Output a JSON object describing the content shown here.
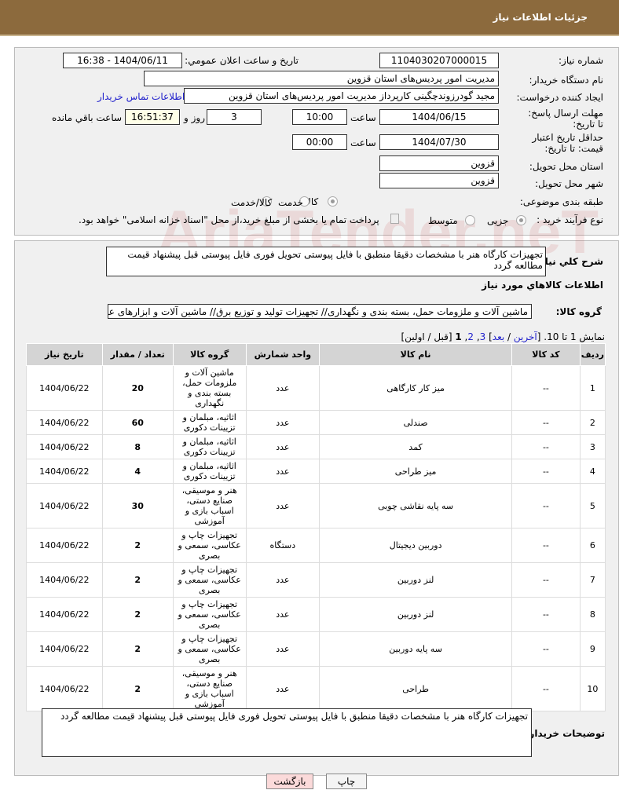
{
  "header": {
    "title": "جزئیات اطلاعات نیاز"
  },
  "form": {
    "need_number_label": "شماره نیاز:",
    "need_number": "1104030207000015",
    "announce_label": "تاریخ و ساعت اعلان عمومي:",
    "announce_value": "1404/06/11 - 16:38",
    "buyer_label": "نام دستگاه خریدار:",
    "buyer": "مدیریت امور پردیس‌های استان قزوین",
    "creator_label": "ایجاد کننده درخواست:",
    "creator": "مجید گودرزوندچگینی کارپرداز مدیریت امور پردیس‌های استان قزوین",
    "contact_link": "اطلاعات تماس خریدار",
    "deadline_label": "مهلت ارسال پاسخ: تا تاریخ:",
    "deadline_date": "1404/06/15",
    "time_label": "ساعت",
    "deadline_time": "10:00",
    "days": "3",
    "days_label": "روز و",
    "remaining": "16:51:37",
    "remaining_label": "ساعت باقي مانده",
    "validity_label": "حداقل تاریخ اعتبار قیمت: تا تاریخ:",
    "validity_date": "1404/07/30",
    "validity_time": "00:00",
    "province_label": "استان محل تحویل:",
    "province": "قزوین",
    "city_label": "شهر محل تحویل:",
    "city": "قزوین",
    "category_label": "طبقه بندی موضوعی:",
    "category_options": [
      "کالا",
      "خدمت",
      "کالا/خدمت"
    ],
    "category_selected": "کالا",
    "process_label": "نوع فرآیند خرید :",
    "process_options": [
      "جزیی",
      "متوسط"
    ],
    "process_selected": "جزیی",
    "payment_note": "پرداخت تمام یا بخشی از مبلغ خرید،از محل \"اسناد خزانه اسلامی\" خواهد بود."
  },
  "summary": {
    "label": "شرح کلي نیاز:",
    "text": "تجهیزات کارگاه هنر با مشخصات دقیقا منطبق با فایل پیوستی تحویل فوری فایل پیوستی قبل پیشنهاد قیمت مطالعه گردد"
  },
  "goods": {
    "section_title": "اطلاعات کالاهاي مورد نیاز",
    "group_label": "گروه کالا:",
    "group_value": "ماشین آلات و ملزومات حمل، بسته بندی و نگهداری// تجهیزات تولید و توزیع برق//  ماشین آلات و ابزارهای عم",
    "paging_text": "نمایش 1 تا 10. [",
    "paging_links": [
      "آخرین",
      "بعد",
      "3",
      "2"
    ],
    "paging_current": "1",
    "paging_tail": "[قبل / اولین]",
    "columns": [
      "ردیف",
      "کد کالا",
      "نام کالا",
      "واحد شمارش",
      "گروه کالا",
      "تعداد / مقدار",
      "تاریخ نیاز"
    ],
    "rows": [
      [
        "1",
        "--",
        "میز کار کارگاهی",
        "عدد",
        "ماشین آلات و ملزومات حمل، بسته بندی و نگهداری",
        "20",
        "1404/06/22"
      ],
      [
        "2",
        "--",
        "صندلی",
        "عدد",
        "اثاثیه، مبلمان و تزیینات دکوری",
        "60",
        "1404/06/22"
      ],
      [
        "3",
        "--",
        "کمد",
        "عدد",
        "اثاثیه، مبلمان و تزیینات دکوری",
        "8",
        "1404/06/22"
      ],
      [
        "4",
        "--",
        "میز طراحی",
        "عدد",
        "اثاثیه، مبلمان و تزیینات دکوری",
        "4",
        "1404/06/22"
      ],
      [
        "5",
        "--",
        "سه پایه نقاشی چوبی",
        "عدد",
        "هنر و موسیقی، صنایع دستی، اسباب بازی و آموزشی",
        "30",
        "1404/06/22"
      ],
      [
        "6",
        "--",
        "دوربین دیجیتال",
        "دستگاه",
        "تجهیزات چاپ و عکاسی، سمعی و بصری",
        "2",
        "1404/06/22"
      ],
      [
        "7",
        "--",
        "لنز دوربین",
        "عدد",
        "تجهیزات چاپ و عکاسی، سمعی و بصری",
        "2",
        "1404/06/22"
      ],
      [
        "8",
        "--",
        "لنز دوربین",
        "عدد",
        "تجهیزات چاپ و عکاسی، سمعی و بصری",
        "2",
        "1404/06/22"
      ],
      [
        "9",
        "--",
        "سه پایه دوربین",
        "عدد",
        "تجهیزات چاپ و عکاسی، سمعی و بصری",
        "2",
        "1404/06/22"
      ],
      [
        "10",
        "--",
        "طراحی",
        "عدد",
        "هنر و موسیقی، صنایع دستی، اسباب بازی و آموزشی",
        "2",
        "1404/06/22"
      ]
    ]
  },
  "buyer_notes": {
    "label": "توضیحات خریدار:",
    "text": "تجهیزات کارگاه هنر با مشخصات دقیقا منطبق با فایل پیوستی تحویل فوری فایل پیوستی قبل پیشنهاد قیمت مطالعه گردد"
  },
  "buttons": {
    "print": "چاپ",
    "back": "بازگشت"
  },
  "watermark": "AriaTender.neT"
}
